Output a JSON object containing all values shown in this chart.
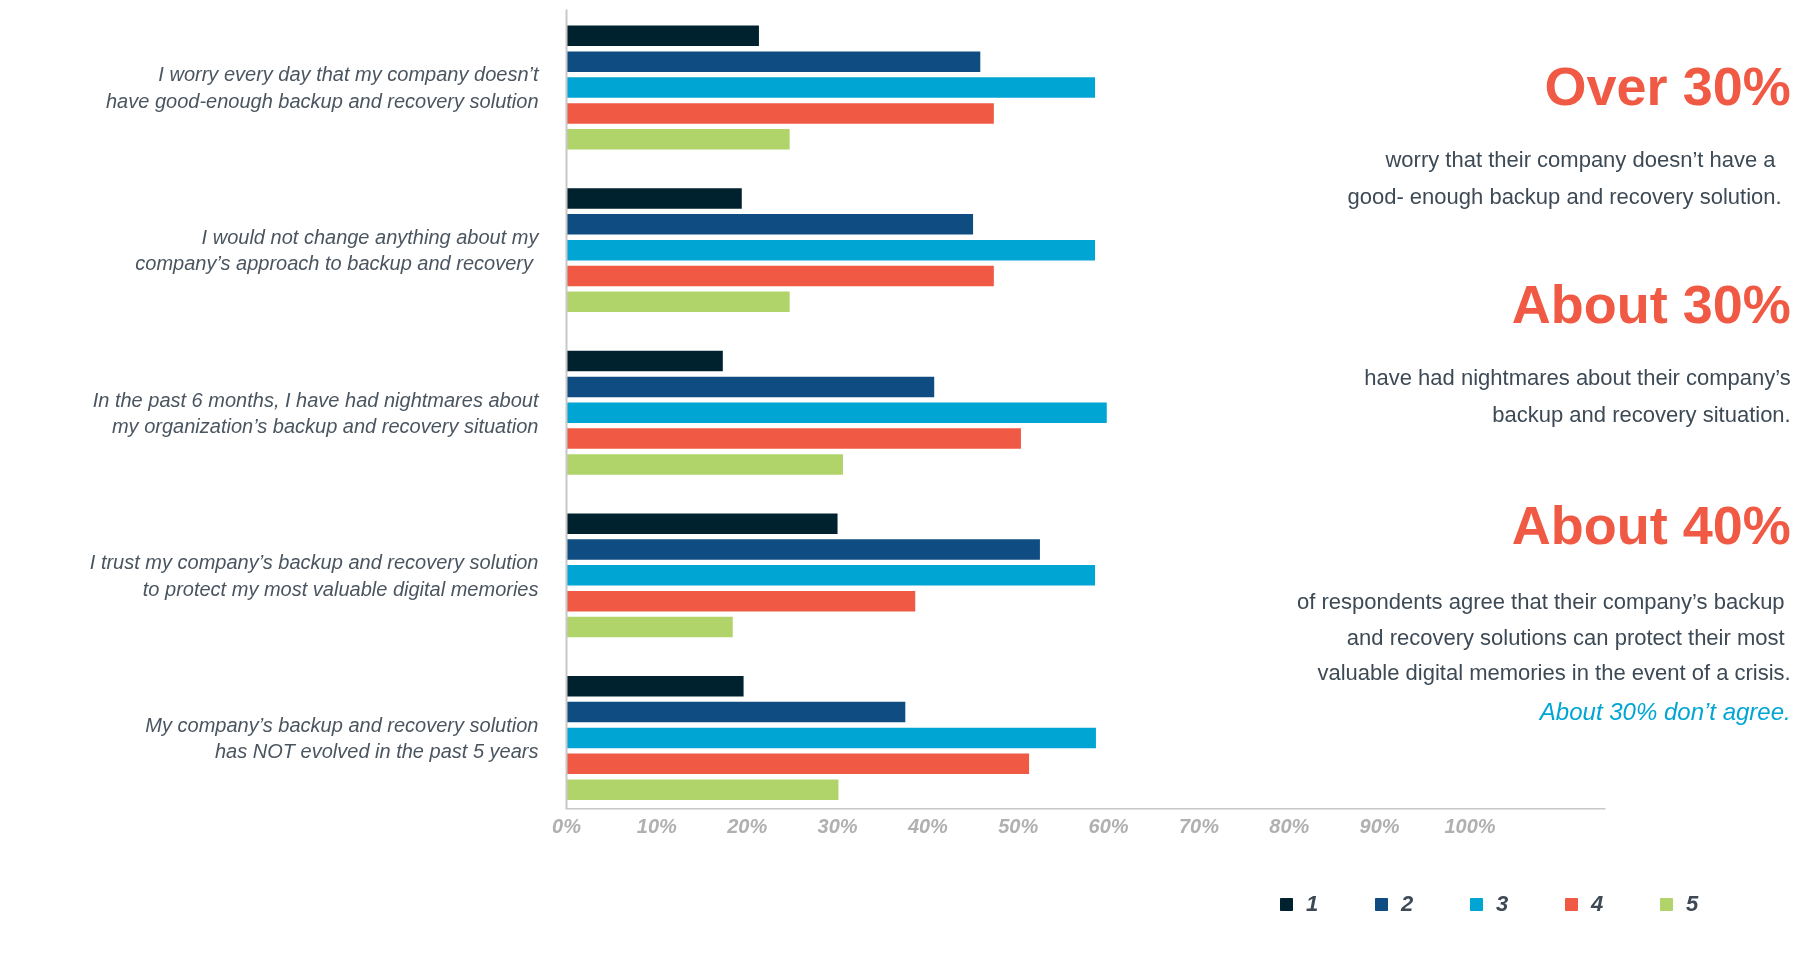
{
  "chart_data": {
    "type": "bar",
    "orientation": "horizontal",
    "categories": [
      "I worry every day that my company doesn’t have good-enough backup and recovery solution",
      "I would not change anything about my company’s approach  to backup and recovery",
      "In the past 6 months, I have had nightmares about my organization’s backup and recovery situation",
      "I trust my company’s backup and recovery solution to protect my most valuable digital memories",
      "My company’s backup and recovery solution has NOT evolved in the past 5 years"
    ],
    "series": [
      {
        "name": "1",
        "color": "#00222f",
        "values": [
          21.3,
          19.4,
          17.3,
          30,
          19.6
        ]
      },
      {
        "name": "2",
        "color": "#0f4c81",
        "values": [
          45.8,
          45,
          40.7,
          52.4,
          37.5
        ]
      },
      {
        "name": "3",
        "color": "#00a5d4",
        "values": [
          58.5,
          58.5,
          59.8,
          58.5,
          58.6
        ]
      },
      {
        "name": "4",
        "color": "#f05a44",
        "values": [
          47.3,
          47.3,
          50.3,
          38.6,
          51.2
        ]
      },
      {
        "name": "5",
        "color": "#b0d46a",
        "values": [
          24.7,
          24.7,
          30.6,
          18.4,
          30.1
        ]
      }
    ],
    "xlim": [
      0,
      115
    ],
    "xticks": [
      {
        "value": 0,
        "label": "0%"
      },
      {
        "value": 10,
        "label": "10%"
      },
      {
        "value": 20,
        "label": "20%"
      },
      {
        "value": 30,
        "label": "30%"
      },
      {
        "value": 40,
        "label": "40%"
      },
      {
        "value": 50,
        "label": "50%"
      },
      {
        "value": 60,
        "label": "60%"
      },
      {
        "value": 70,
        "label": "70%"
      },
      {
        "value": 80,
        "label": "80%"
      },
      {
        "value": 90,
        "label": "90%"
      },
      {
        "value": 100,
        "label": "100%"
      }
    ],
    "legend": "bottom",
    "annotations": [
      "Over 30%",
      "worry that their  company doesn’t have a",
      "good- enough backup and recovery solution.",
      "About 30%",
      "have had nightmares about their company’s",
      "backup and recovery situation.",
      "About 40%",
      "of respondents agree that their company’s  backup",
      "and recovery solutions can protect  their most",
      "valuable digital memories in the event of a crisis.",
      "About 30% don’t agree."
    ]
  }
}
